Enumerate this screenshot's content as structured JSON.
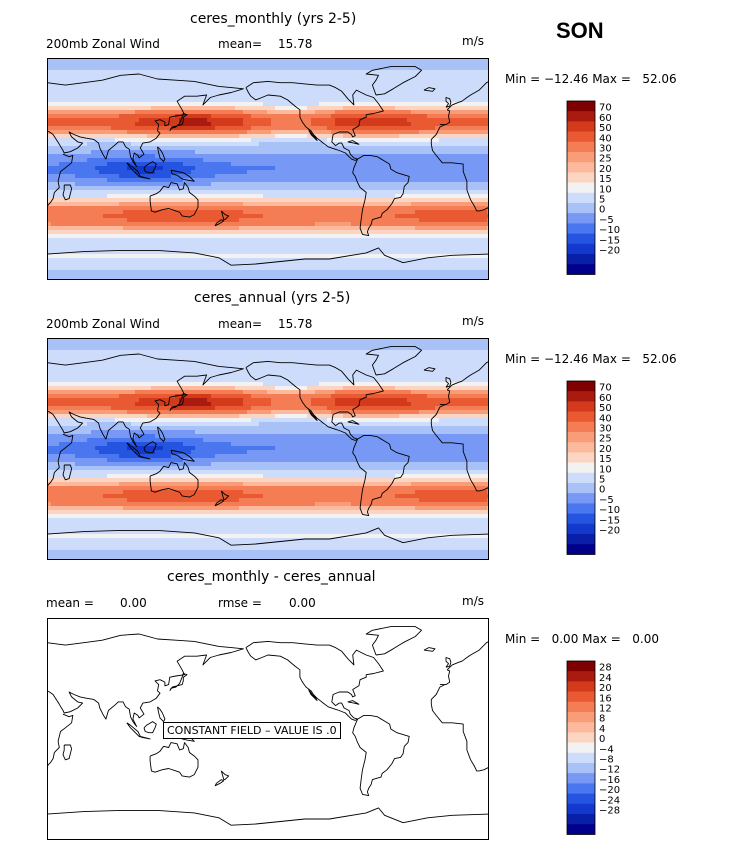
{
  "season": "SON",
  "units": "m/s",
  "colors": {
    "wind_levels": [
      "#00008b",
      "#0a1fa8",
      "#1338cc",
      "#2554e0",
      "#4a76f0",
      "#7799f5",
      "#a8c1f7",
      "#cddcfa",
      "#f2f2f2",
      "#fcd5c2",
      "#fcb99c",
      "#f99c78",
      "#f47d55",
      "#e95a33",
      "#d23a1b",
      "#a91b0f",
      "#7f0000"
    ],
    "diff_levels": [
      "#00008b",
      "#0a1fa8",
      "#1338cc",
      "#2554e0",
      "#4a76f0",
      "#7799f5",
      "#a8c1f7",
      "#cddcfa",
      "#f2f2f2",
      "#fcd5c2",
      "#fcb99c",
      "#f99c78",
      "#f47d55",
      "#e95a33",
      "#d23a1b",
      "#a91b0f",
      "#7f0000"
    ]
  },
  "panels": [
    {
      "title": "ceres_monthly (yrs 2-5)",
      "variable": "200mb Zonal Wind",
      "stat_label": "mean=",
      "stat_value": "15.78",
      "minmax": "Min = −12.46 Max =   52.06",
      "ticks": [
        "70",
        "60",
        "50",
        "40",
        "30",
        "25",
        "20",
        "15",
        "10",
        "5",
        "0",
        "−5",
        "−10",
        "−15",
        "−20"
      ]
    },
    {
      "title": "ceres_annual (yrs 2-5)",
      "variable": "200mb Zonal Wind",
      "stat_label": "mean=",
      "stat_value": "15.78",
      "minmax": "Min = −12.46 Max =   52.06",
      "ticks": [
        "70",
        "60",
        "50",
        "40",
        "30",
        "25",
        "20",
        "15",
        "10",
        "5",
        "0",
        "−5",
        "−10",
        "−15",
        "−20"
      ]
    },
    {
      "title": "ceres_monthly - ceres_annual",
      "mean_label": "mean =",
      "mean_value": "0.00",
      "rmse_label": "rmse =",
      "rmse_value": "0.00",
      "minmax": "Min =   0.00 Max =   0.00",
      "constant_note": "CONSTANT FIELD – VALUE IS .0",
      "ticks": [
        "28",
        "24",
        "20",
        "16",
        "12",
        "8",
        "4",
        "0",
        "−4",
        "−8",
        "−12",
        "−16",
        "−20",
        "−24",
        "−28"
      ]
    }
  ]
}
